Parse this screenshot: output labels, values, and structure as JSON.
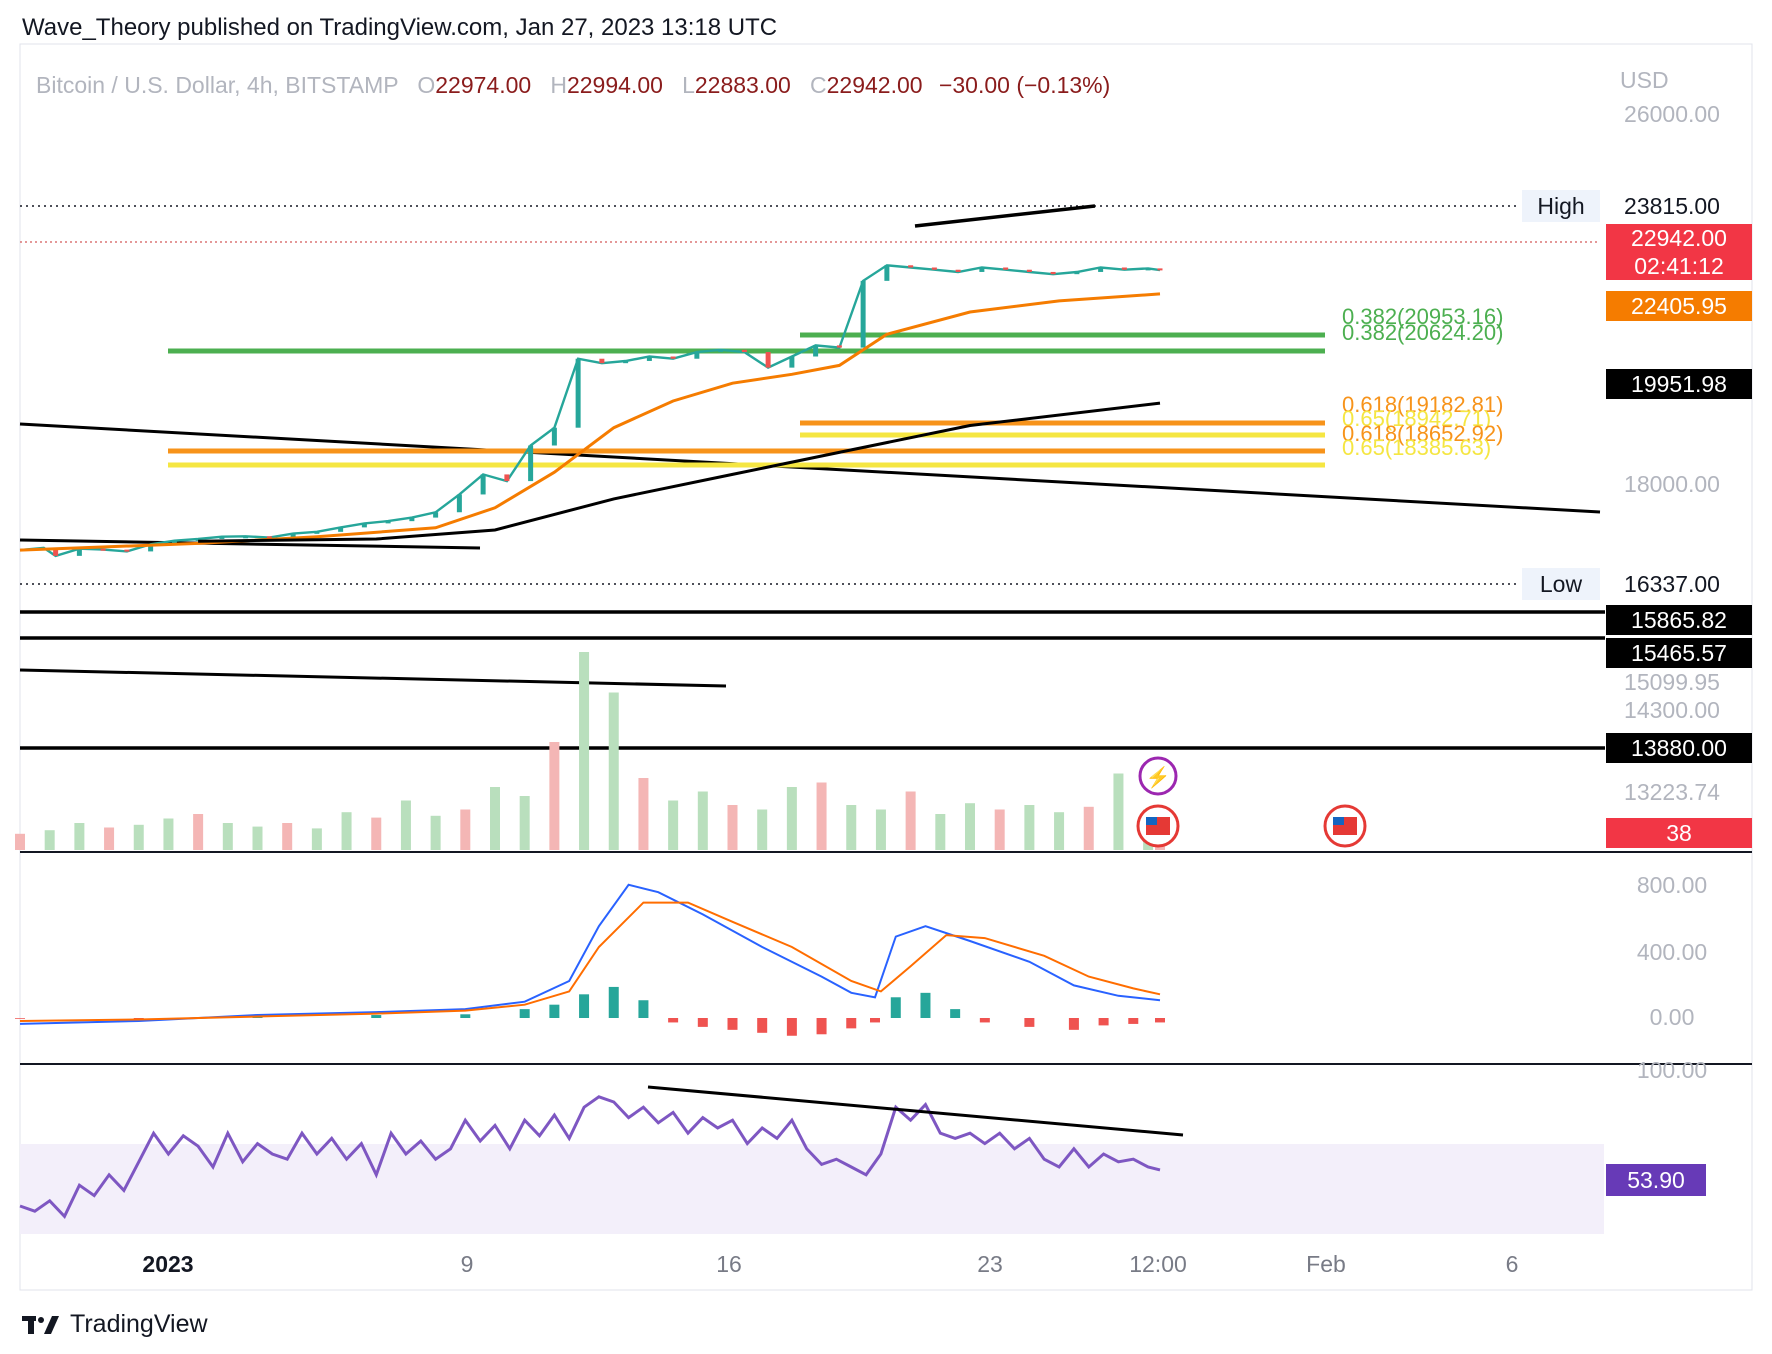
{
  "header": {
    "publisher_line": "Wave_Theory published on TradingView.com, Jan 27, 2023 13:18 UTC"
  },
  "legend": {
    "symbol": "Bitcoin / U.S. Dollar, 4h, BITSTAMP",
    "o_label": "O",
    "o_value": "22974.00",
    "h_label": "H",
    "h_value": "22994.00",
    "l_label": "L",
    "l_value": "22883.00",
    "c_label": "C",
    "c_value": "22942.00",
    "change": "−30.00 (−0.13%)"
  },
  "footer": {
    "brand": "TradingView"
  },
  "colors": {
    "up": "#26a69a",
    "down": "#ef5350",
    "ema_orange": "#f57c00",
    "ma_black": "#000000",
    "fib_green": "#4caf50",
    "fib_orange": "#f7931a",
    "fib_yellow": "#f5e642",
    "macd_blue": "#2962ff",
    "macd_signal": "#ff6d00",
    "rsi": "#7e57c2"
  },
  "chart_data": {
    "type": "candlestick",
    "price_axis": {
      "currency": "USD",
      "tick_labels": [
        "26000.00",
        "18000.00",
        "15099.95",
        "14300.00",
        "13223.74"
      ],
      "markers": [
        {
          "label": "High",
          "value": "23815.00"
        },
        {
          "label": "Low",
          "value": "16337.00"
        }
      ],
      "price_badges": [
        {
          "value": "22942.00",
          "sub": "02:41:12",
          "color": "#f23645"
        },
        {
          "value": "22405.95",
          "color": "#f57c00"
        },
        {
          "value": "19951.98",
          "color": "#000000"
        },
        {
          "value": "15865.82",
          "color": "#000000"
        },
        {
          "value": "15465.57",
          "color": "#000000"
        },
        {
          "value": "13880.00",
          "color": "#000000"
        },
        {
          "value": "38",
          "color": "#f23645"
        }
      ]
    },
    "fib_levels": [
      {
        "label": "0.382(20953.16)",
        "color": "#4caf50"
      },
      {
        "label": "0.382(20624.20)",
        "color": "#4caf50"
      },
      {
        "label": "0.618(19182.81)",
        "color": "#f7931a"
      },
      {
        "label": "0.65(18942.71)",
        "color": "#f5e642"
      },
      {
        "label": "0.618(18652.92)",
        "color": "#f7931a"
      },
      {
        "label": "0.65(18385.63)",
        "color": "#f5e642"
      }
    ],
    "price_trend": [
      [
        0,
        16650
      ],
      [
        8,
        16700
      ],
      [
        12,
        16520
      ],
      [
        20,
        16680
      ],
      [
        28,
        16660
      ],
      [
        36,
        16620
      ],
      [
        44,
        16780
      ],
      [
        52,
        16860
      ],
      [
        60,
        16900
      ],
      [
        68,
        16950
      ],
      [
        76,
        16960
      ],
      [
        84,
        16930
      ],
      [
        92,
        17020
      ],
      [
        100,
        17060
      ],
      [
        108,
        17160
      ],
      [
        116,
        17250
      ],
      [
        124,
        17300
      ],
      [
        132,
        17380
      ],
      [
        140,
        17500
      ],
      [
        148,
        17900
      ],
      [
        156,
        18350
      ],
      [
        164,
        18200
      ],
      [
        172,
        19000
      ],
      [
        180,
        19400
      ],
      [
        188,
        20950
      ],
      [
        196,
        20850
      ],
      [
        204,
        20900
      ],
      [
        212,
        21000
      ],
      [
        220,
        20950
      ],
      [
        228,
        21100
      ],
      [
        236,
        21150
      ],
      [
        244,
        21100
      ],
      [
        252,
        20750
      ],
      [
        260,
        21000
      ],
      [
        268,
        21250
      ],
      [
        276,
        21200
      ],
      [
        284,
        22700
      ],
      [
        292,
        23050
      ],
      [
        300,
        23000
      ],
      [
        308,
        22950
      ],
      [
        316,
        22900
      ],
      [
        324,
        23000
      ],
      [
        332,
        22950
      ],
      [
        340,
        22900
      ],
      [
        348,
        22850
      ],
      [
        356,
        22900
      ],
      [
        364,
        23000
      ],
      [
        372,
        22950
      ],
      [
        380,
        22980
      ],
      [
        384,
        22942
      ]
    ],
    "ema_trend": [
      [
        0,
        16650
      ],
      [
        60,
        16800
      ],
      [
        100,
        16950
      ],
      [
        140,
        17150
      ],
      [
        160,
        17600
      ],
      [
        180,
        18400
      ],
      [
        200,
        19400
      ],
      [
        220,
        20000
      ],
      [
        240,
        20400
      ],
      [
        260,
        20600
      ],
      [
        276,
        20800
      ],
      [
        292,
        21500
      ],
      [
        320,
        22000
      ],
      [
        350,
        22250
      ],
      [
        384,
        22405.95
      ]
    ],
    "ma_trend": [
      [
        60,
        16850
      ],
      [
        120,
        16900
      ],
      [
        160,
        17100
      ],
      [
        200,
        17800
      ],
      [
        240,
        18350
      ],
      [
        280,
        18900
      ],
      [
        320,
        19450
      ],
      [
        384,
        19951.98
      ]
    ],
    "volume_panel": {
      "last_value": "38",
      "bars": [
        [
          0,
          18
        ],
        [
          10,
          22
        ],
        [
          20,
          30
        ],
        [
          30,
          25
        ],
        [
          40,
          28
        ],
        [
          50,
          35
        ],
        [
          60,
          40
        ],
        [
          70,
          30
        ],
        [
          80,
          26
        ],
        [
          90,
          30
        ],
        [
          100,
          24
        ],
        [
          110,
          42
        ],
        [
          120,
          36
        ],
        [
          130,
          55
        ],
        [
          140,
          38
        ],
        [
          150,
          45
        ],
        [
          160,
          70
        ],
        [
          170,
          60
        ],
        [
          180,
          120
        ],
        [
          190,
          220
        ],
        [
          200,
          175
        ],
        [
          210,
          80
        ],
        [
          220,
          55
        ],
        [
          230,
          65
        ],
        [
          240,
          50
        ],
        [
          250,
          45
        ],
        [
          260,
          70
        ],
        [
          270,
          75
        ],
        [
          280,
          50
        ],
        [
          290,
          45
        ],
        [
          300,
          65
        ],
        [
          310,
          40
        ],
        [
          320,
          52
        ],
        [
          330,
          45
        ],
        [
          340,
          50
        ],
        [
          350,
          42
        ],
        [
          360,
          48
        ],
        [
          370,
          85
        ],
        [
          380,
          45
        ],
        [
          384,
          38
        ]
      ]
    },
    "macd_panel": {
      "tick_labels": [
        "800.00",
        "400.00",
        "0.00"
      ],
      "macd": [
        [
          0,
          -40
        ],
        [
          40,
          -20
        ],
        [
          80,
          20
        ],
        [
          120,
          40
        ],
        [
          150,
          60
        ],
        [
          170,
          110
        ],
        [
          185,
          250
        ],
        [
          195,
          620
        ],
        [
          205,
          900
        ],
        [
          215,
          850
        ],
        [
          230,
          700
        ],
        [
          250,
          480
        ],
        [
          270,
          280
        ],
        [
          280,
          170
        ],
        [
          288,
          140
        ],
        [
          295,
          550
        ],
        [
          305,
          620
        ],
        [
          320,
          520
        ],
        [
          340,
          380
        ],
        [
          355,
          220
        ],
        [
          370,
          150
        ],
        [
          384,
          120
        ]
      ],
      "signal": [
        [
          0,
          -20
        ],
        [
          40,
          -10
        ],
        [
          80,
          10
        ],
        [
          120,
          30
        ],
        [
          150,
          50
        ],
        [
          170,
          90
        ],
        [
          185,
          180
        ],
        [
          195,
          480
        ],
        [
          210,
          780
        ],
        [
          225,
          780
        ],
        [
          240,
          650
        ],
        [
          260,
          480
        ],
        [
          280,
          250
        ],
        [
          290,
          180
        ],
        [
          300,
          350
        ],
        [
          312,
          560
        ],
        [
          325,
          540
        ],
        [
          345,
          420
        ],
        [
          360,
          280
        ],
        [
          375,
          200
        ],
        [
          384,
          160
        ]
      ],
      "histogram": [
        [
          0,
          -5
        ],
        [
          40,
          -10
        ],
        [
          80,
          15
        ],
        [
          120,
          20
        ],
        [
          150,
          25
        ],
        [
          170,
          60
        ],
        [
          180,
          90
        ],
        [
          190,
          160
        ],
        [
          200,
          210
        ],
        [
          210,
          120
        ],
        [
          220,
          -30
        ],
        [
          230,
          -60
        ],
        [
          240,
          -80
        ],
        [
          250,
          -100
        ],
        [
          260,
          -120
        ],
        [
          270,
          -110
        ],
        [
          280,
          -70
        ],
        [
          288,
          -30
        ],
        [
          295,
          140
        ],
        [
          305,
          170
        ],
        [
          315,
          60
        ],
        [
          325,
          -30
        ],
        [
          340,
          -60
        ],
        [
          355,
          -80
        ],
        [
          365,
          -50
        ],
        [
          375,
          -40
        ],
        [
          384,
          -30
        ]
      ]
    },
    "rsi_panel": {
      "tick_labels": [
        "100.00"
      ],
      "last_value": "53.90",
      "values": [
        [
          0,
          40
        ],
        [
          5,
          38
        ],
        [
          10,
          42
        ],
        [
          15,
          36
        ],
        [
          20,
          48
        ],
        [
          25,
          44
        ],
        [
          30,
          52
        ],
        [
          35,
          46
        ],
        [
          40,
          57
        ],
        [
          45,
          68
        ],
        [
          50,
          60
        ],
        [
          55,
          67
        ],
        [
          60,
          63
        ],
        [
          65,
          55
        ],
        [
          70,
          68
        ],
        [
          75,
          57
        ],
        [
          80,
          64
        ],
        [
          85,
          60
        ],
        [
          90,
          58
        ],
        [
          95,
          68
        ],
        [
          100,
          60
        ],
        [
          105,
          66
        ],
        [
          110,
          58
        ],
        [
          115,
          64
        ],
        [
          120,
          52
        ],
        [
          125,
          68
        ],
        [
          130,
          60
        ],
        [
          135,
          65
        ],
        [
          140,
          58
        ],
        [
          145,
          62
        ],
        [
          150,
          73
        ],
        [
          155,
          65
        ],
        [
          160,
          71
        ],
        [
          165,
          62
        ],
        [
          170,
          73
        ],
        [
          175,
          67
        ],
        [
          180,
          75
        ],
        [
          185,
          66
        ],
        [
          190,
          78
        ],
        [
          195,
          82
        ],
        [
          200,
          80
        ],
        [
          205,
          74
        ],
        [
          210,
          78
        ],
        [
          215,
          72
        ],
        [
          220,
          76
        ],
        [
          225,
          68
        ],
        [
          230,
          74
        ],
        [
          235,
          70
        ],
        [
          240,
          73
        ],
        [
          245,
          64
        ],
        [
          250,
          70
        ],
        [
          255,
          66
        ],
        [
          260,
          73
        ],
        [
          265,
          62
        ],
        [
          270,
          56
        ],
        [
          275,
          58
        ],
        [
          280,
          55
        ],
        [
          285,
          52
        ],
        [
          290,
          60
        ],
        [
          295,
          78
        ],
        [
          300,
          73
        ],
        [
          305,
          79
        ],
        [
          310,
          68
        ],
        [
          315,
          66
        ],
        [
          320,
          68
        ],
        [
          325,
          64
        ],
        [
          330,
          68
        ],
        [
          335,
          62
        ],
        [
          340,
          66
        ],
        [
          345,
          58
        ],
        [
          350,
          55
        ],
        [
          355,
          62
        ],
        [
          360,
          55
        ],
        [
          365,
          60
        ],
        [
          370,
          57
        ],
        [
          375,
          58
        ],
        [
          380,
          55
        ],
        [
          384,
          53.9
        ]
      ]
    },
    "time_axis": {
      "tick_labels": [
        "2023",
        "9",
        "16",
        "23",
        "12:00",
        "Feb",
        "6"
      ]
    }
  }
}
